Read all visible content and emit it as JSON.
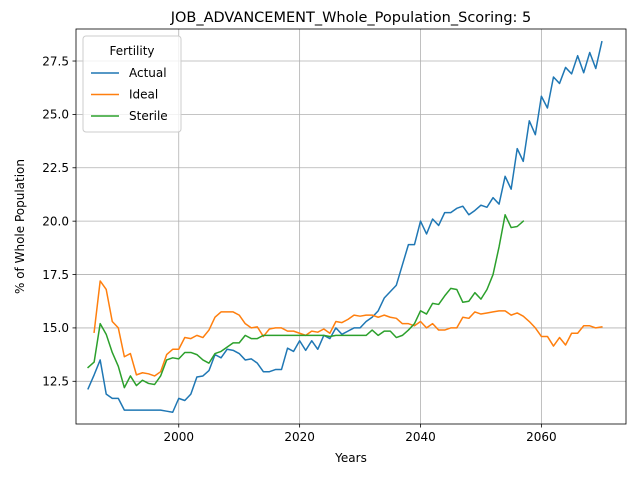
{
  "chart_data": {
    "type": "line",
    "title": "JOB_ADVANCEMENT_Whole_Population_Scoring: 5",
    "xlabel": "Years",
    "ylabel": "% of Whole Population",
    "xlim": [
      1983,
      2074
    ],
    "ylim": [
      10.5,
      29.0
    ],
    "xticks": [
      2000,
      2020,
      2040,
      2060
    ],
    "yticks": [
      12.5,
      15.0,
      17.5,
      20.0,
      22.5,
      25.0,
      27.5
    ],
    "ytick_labels": [
      "12.5",
      "15.0",
      "17.5",
      "20.0",
      "22.5",
      "25.0",
      "27.5"
    ],
    "grid": true,
    "legend": {
      "title": "Fertility",
      "position": "top-left"
    },
    "series": [
      {
        "name": "Actual",
        "color": "#1f77b4",
        "x": [
          1985,
          1986,
          1987,
          1988,
          1989,
          1990,
          1991,
          1992,
          1993,
          1994,
          1995,
          1996,
          1997,
          1998,
          1999,
          2000,
          2001,
          2002,
          2003,
          2004,
          2005,
          2006,
          2007,
          2008,
          2009,
          2010,
          2011,
          2012,
          2013,
          2014,
          2015,
          2016,
          2017,
          2018,
          2019,
          2020,
          2021,
          2022,
          2023,
          2024,
          2025,
          2026,
          2027,
          2028,
          2029,
          2030,
          2031,
          2032,
          2033,
          2034,
          2035,
          2036,
          2037,
          2038,
          2039,
          2040,
          2041,
          2042,
          2043,
          2044,
          2045,
          2046,
          2047,
          2048,
          2049,
          2050,
          2051,
          2052,
          2053,
          2054,
          2055,
          2056,
          2057,
          2058,
          2059,
          2060,
          2061,
          2062,
          2063,
          2064,
          2065,
          2066,
          2067,
          2068,
          2069,
          2070
        ],
        "values": [
          12.15,
          12.8,
          13.5,
          11.9,
          11.7,
          11.7,
          11.15,
          11.15,
          11.15,
          11.15,
          11.15,
          11.15,
          11.15,
          11.1,
          11.05,
          11.7,
          11.6,
          11.9,
          12.7,
          12.75,
          13.0,
          13.75,
          13.6,
          14.0,
          13.95,
          13.8,
          13.5,
          13.55,
          13.35,
          12.95,
          12.95,
          13.05,
          13.05,
          14.05,
          13.9,
          14.4,
          13.95,
          14.4,
          14.0,
          14.65,
          14.5,
          15.0,
          14.7,
          14.85,
          15.0,
          15.0,
          15.3,
          15.5,
          15.8,
          16.4,
          16.7,
          17.0,
          17.95,
          18.9,
          18.9,
          20.0,
          19.4,
          20.1,
          19.8,
          20.4,
          20.4,
          20.6,
          20.7,
          20.3,
          20.5,
          20.75,
          20.65,
          21.1,
          20.8,
          22.1,
          21.5,
          23.4,
          22.8,
          24.7,
          24.05,
          25.85,
          25.3,
          26.75,
          26.45,
          27.2,
          26.9,
          27.75,
          26.95,
          27.9,
          27.15,
          28.4
        ]
      },
      {
        "name": "Ideal",
        "color": "#ff7f0e",
        "x": [
          1986,
          1987,
          1988,
          1989,
          1990,
          1991,
          1992,
          1993,
          1994,
          1995,
          1996,
          1997,
          1998,
          1999,
          2000,
          2001,
          2002,
          2003,
          2004,
          2005,
          2006,
          2007,
          2008,
          2009,
          2010,
          2011,
          2012,
          2013,
          2014,
          2015,
          2016,
          2017,
          2018,
          2019,
          2020,
          2021,
          2022,
          2023,
          2024,
          2025,
          2026,
          2027,
          2028,
          2029,
          2030,
          2031,
          2032,
          2033,
          2034,
          2035,
          2036,
          2037,
          2038,
          2039,
          2040,
          2041,
          2042,
          2043,
          2044,
          2045,
          2046,
          2047,
          2048,
          2049,
          2050,
          2051,
          2052,
          2053,
          2054,
          2055,
          2056,
          2057,
          2058,
          2059,
          2060,
          2061,
          2062,
          2063,
          2064,
          2065,
          2066,
          2067,
          2068,
          2069,
          2070
        ],
        "values": [
          14.8,
          17.2,
          16.8,
          15.3,
          15.0,
          13.65,
          13.8,
          12.8,
          12.9,
          12.85,
          12.75,
          12.95,
          13.75,
          14.0,
          14.0,
          14.55,
          14.5,
          14.65,
          14.55,
          14.9,
          15.5,
          15.75,
          15.75,
          15.75,
          15.6,
          15.2,
          15.0,
          15.05,
          14.6,
          14.95,
          15.0,
          15.0,
          14.85,
          14.85,
          14.75,
          14.65,
          14.85,
          14.8,
          14.95,
          14.75,
          15.3,
          15.25,
          15.4,
          15.6,
          15.55,
          15.6,
          15.6,
          15.5,
          15.6,
          15.5,
          15.45,
          15.2,
          15.2,
          15.1,
          15.3,
          15.0,
          15.2,
          14.9,
          14.9,
          15.0,
          15.0,
          15.5,
          15.45,
          15.75,
          15.65,
          15.7,
          15.75,
          15.8,
          15.8,
          15.6,
          15.7,
          15.55,
          15.3,
          15.0,
          14.6,
          14.6,
          14.15,
          14.55,
          14.2,
          14.75,
          14.75,
          15.1,
          15.1,
          15.0,
          15.05
        ]
      },
      {
        "name": "Sterile",
        "color": "#2ca02c",
        "x": [
          1985,
          1986,
          1987,
          1988,
          1989,
          1990,
          1991,
          1992,
          1993,
          1994,
          1995,
          1996,
          1997,
          1998,
          1999,
          2000,
          2001,
          2002,
          2003,
          2004,
          2005,
          2006,
          2007,
          2008,
          2009,
          2010,
          2011,
          2012,
          2013,
          2014,
          2015,
          2016,
          2017,
          2018,
          2019,
          2020,
          2021,
          2022,
          2023,
          2024,
          2025,
          2026,
          2027,
          2028,
          2029,
          2030,
          2031,
          2032,
          2033,
          2034,
          2035,
          2036,
          2037,
          2038,
          2039,
          2040,
          2041,
          2042,
          2043,
          2044,
          2045,
          2046,
          2047,
          2048,
          2049,
          2050,
          2051,
          2052,
          2053,
          2054,
          2055,
          2056,
          2057
        ],
        "values": [
          13.15,
          13.4,
          15.2,
          14.7,
          13.85,
          13.2,
          12.2,
          12.75,
          12.3,
          12.55,
          12.4,
          12.35,
          12.75,
          13.5,
          13.6,
          13.55,
          13.85,
          13.85,
          13.75,
          13.5,
          13.35,
          13.8,
          13.9,
          14.1,
          14.3,
          14.3,
          14.65,
          14.5,
          14.5,
          14.65,
          14.65,
          14.65,
          14.65,
          14.65,
          14.65,
          14.65,
          14.65,
          14.65,
          14.65,
          14.65,
          14.6,
          14.65,
          14.65,
          14.65,
          14.65,
          14.65,
          14.65,
          14.9,
          14.65,
          14.85,
          14.85,
          14.55,
          14.65,
          14.9,
          15.2,
          15.8,
          15.65,
          16.15,
          16.1,
          16.5,
          16.85,
          16.8,
          16.2,
          16.25,
          16.65,
          16.35,
          16.8,
          17.5,
          18.8,
          20.3,
          19.7,
          19.75,
          20.0
        ]
      }
    ]
  }
}
